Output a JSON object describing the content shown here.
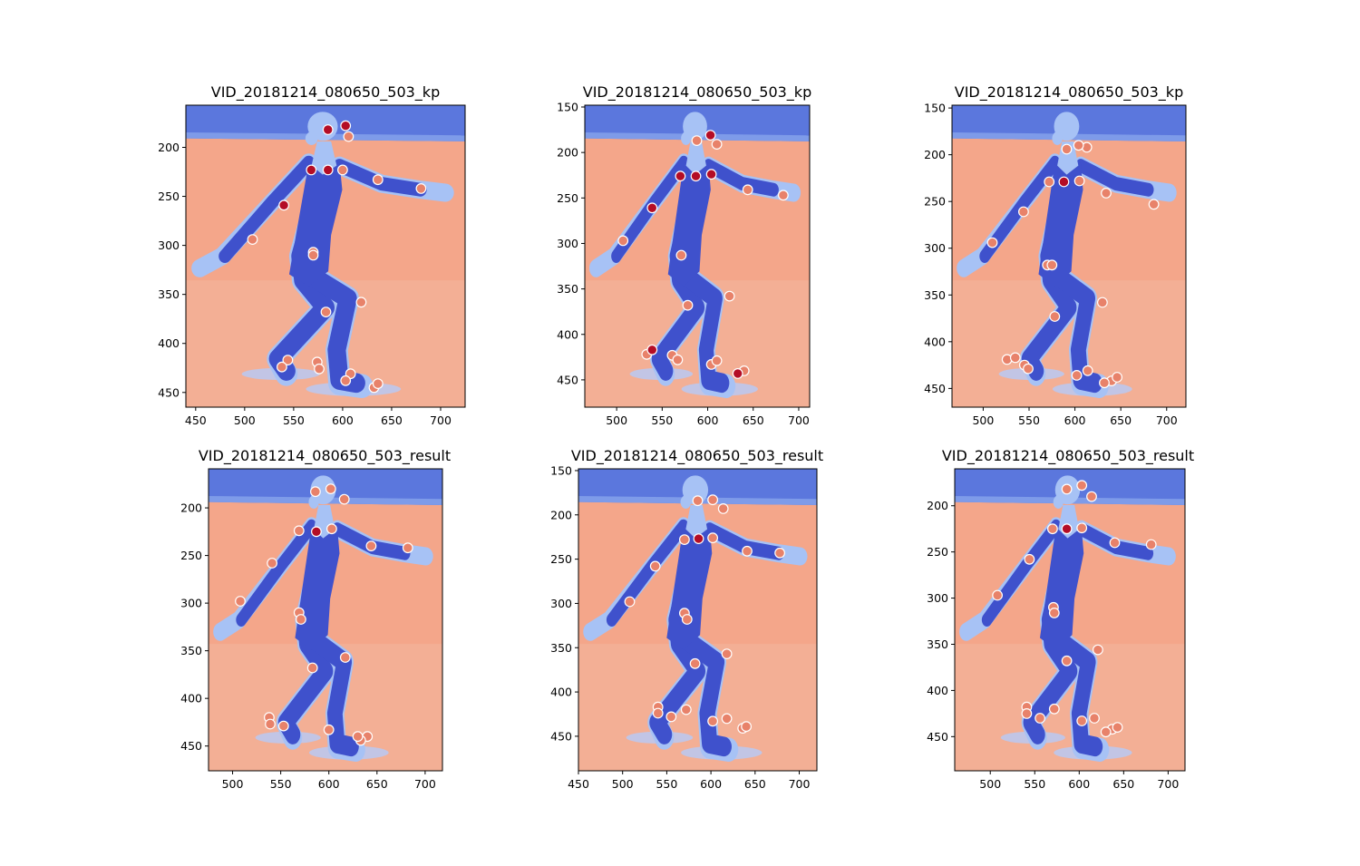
{
  "colors": {
    "background_ice": "#f4a68a",
    "background_ice_light": "#f2b59c",
    "boards": "#5b77dd",
    "boards_light": "#7e9be9",
    "skater_body": "#3f51cc",
    "skater_light": "#a7c2f5",
    "keypoint_hot": "#b40d26",
    "keypoint_warm": "#e8826a",
    "keypoint_edge": "#ffffff"
  },
  "chart_data": [
    {
      "type": "scatter",
      "title": "VID_20181214_080650_503_kp",
      "xlim": [
        440,
        725
      ],
      "ylim": [
        465,
        157
      ],
      "xticks": [
        450,
        500,
        550,
        600,
        650,
        700
      ],
      "yticks": [
        200,
        250,
        300,
        350,
        400,
        450
      ],
      "hot_points": [
        [
          585,
          182
        ],
        [
          603,
          178
        ],
        [
          568,
          223
        ],
        [
          585,
          223
        ],
        [
          540,
          259
        ]
      ],
      "warm_points": [
        [
          606,
          189
        ],
        [
          600,
          223
        ],
        [
          636,
          233
        ],
        [
          680,
          242
        ],
        [
          508,
          294
        ],
        [
          570,
          307
        ],
        [
          570,
          310
        ],
        [
          619,
          358
        ],
        [
          583,
          368
        ],
        [
          544,
          417
        ],
        [
          538,
          424
        ],
        [
          574,
          419
        ],
        [
          576,
          426
        ],
        [
          608,
          431
        ],
        [
          603,
          438
        ],
        [
          632,
          445
        ],
        [
          636,
          441
        ]
      ]
    },
    {
      "type": "scatter",
      "title": "VID_20181214_080650_503_kp",
      "xlim": [
        465,
        712
      ],
      "ylim": [
        480,
        148
      ],
      "xticks": [
        500,
        550,
        600,
        650,
        700
      ],
      "yticks": [
        150,
        200,
        250,
        300,
        350,
        400,
        450
      ],
      "hot_points": [
        [
          603,
          181
        ],
        [
          570,
          226
        ],
        [
          587,
          226
        ],
        [
          604,
          224
        ],
        [
          539,
          261
        ],
        [
          539,
          417
        ],
        [
          633,
          443
        ]
      ],
      "warm_points": [
        [
          588,
          187
        ],
        [
          610,
          191
        ],
        [
          644,
          241
        ],
        [
          683,
          247
        ],
        [
          507,
          297
        ],
        [
          571,
          313
        ],
        [
          624,
          358
        ],
        [
          578,
          368
        ],
        [
          533,
          422
        ],
        [
          561,
          423
        ],
        [
          567,
          428
        ],
        [
          604,
          433
        ],
        [
          610,
          429
        ],
        [
          640,
          440
        ]
      ]
    },
    {
      "type": "scatter",
      "title": "VID_20181214_080650_503_kp",
      "xlim": [
        466,
        721
      ],
      "ylim": [
        470,
        147
      ],
      "xticks": [
        500,
        550,
        600,
        650,
        700
      ],
      "yticks": [
        150,
        200,
        250,
        300,
        350,
        400,
        450
      ],
      "hot_points": [
        [
          588,
          229
        ]
      ],
      "warm_points": [
        [
          591,
          194
        ],
        [
          613,
          192
        ],
        [
          604,
          190
        ],
        [
          572,
          229
        ],
        [
          605,
          228
        ],
        [
          634,
          241
        ],
        [
          686,
          253
        ],
        [
          544,
          261
        ],
        [
          510,
          294
        ],
        [
          570,
          318
        ],
        [
          575,
          318
        ],
        [
          630,
          358
        ],
        [
          578,
          373
        ],
        [
          526,
          419
        ],
        [
          535,
          417
        ],
        [
          545,
          425
        ],
        [
          549,
          429
        ],
        [
          602,
          436
        ],
        [
          614,
          431
        ],
        [
          640,
          442
        ],
        [
          646,
          438
        ],
        [
          632,
          444
        ]
      ]
    },
    {
      "type": "scatter",
      "title": "VID_20181214_080650_503_result",
      "xlim": [
        475,
        718
      ],
      "ylim": [
        476,
        159
      ],
      "xticks": [
        500,
        550,
        600,
        650,
        700
      ],
      "yticks": [
        200,
        250,
        300,
        350,
        400,
        450
      ],
      "hot_points": [
        [
          587,
          225
        ]
      ],
      "warm_points": [
        [
          586,
          183
        ],
        [
          602,
          180
        ],
        [
          616,
          191
        ],
        [
          569,
          224
        ],
        [
          603,
          222
        ],
        [
          644,
          240
        ],
        [
          682,
          242
        ],
        [
          541,
          258
        ],
        [
          508,
          298
        ],
        [
          569,
          310
        ],
        [
          571,
          317
        ],
        [
          617,
          357
        ],
        [
          583,
          368
        ],
        [
          538,
          420
        ],
        [
          539,
          427
        ],
        [
          553,
          429
        ],
        [
          600,
          433
        ],
        [
          640,
          440
        ],
        [
          633,
          444
        ],
        [
          630,
          440
        ]
      ]
    },
    {
      "type": "scatter",
      "title": "VID_20181214_080650_503_result",
      "xlim": [
        450,
        720
      ],
      "ylim": [
        489,
        148
      ],
      "xticks": [
        450,
        500,
        550,
        600,
        650,
        700
      ],
      "yticks": [
        150,
        200,
        250,
        300,
        350,
        400,
        450
      ],
      "hot_points": [
        [
          586,
          227
        ]
      ],
      "warm_points": [
        [
          585,
          184
        ],
        [
          602,
          183
        ],
        [
          614,
          193
        ],
        [
          570,
          228
        ],
        [
          602,
          226
        ],
        [
          641,
          241
        ],
        [
          678,
          243
        ],
        [
          537,
          258
        ],
        [
          508,
          298
        ],
        [
          570,
          311
        ],
        [
          573,
          318
        ],
        [
          618,
          357
        ],
        [
          582,
          368
        ],
        [
          540,
          417
        ],
        [
          540,
          424
        ],
        [
          555,
          428
        ],
        [
          572,
          420
        ],
        [
          602,
          433
        ],
        [
          618,
          430
        ],
        [
          636,
          441
        ],
        [
          640,
          439
        ]
      ]
    },
    {
      "type": "scatter",
      "title": "VID_20181214_080650_503_result",
      "xlim": [
        460,
        719
      ],
      "ylim": [
        487,
        160
      ],
      "xticks": [
        500,
        550,
        600,
        650,
        700
      ],
      "yticks": [
        200,
        250,
        300,
        350,
        400,
        450
      ],
      "hot_points": [
        [
          586,
          225
        ]
      ],
      "warm_points": [
        [
          586,
          182
        ],
        [
          603,
          178
        ],
        [
          614,
          190
        ],
        [
          570,
          225
        ],
        [
          603,
          224
        ],
        [
          640,
          240
        ],
        [
          681,
          242
        ],
        [
          544,
          258
        ],
        [
          508,
          297
        ],
        [
          571,
          310
        ],
        [
          572,
          316
        ],
        [
          621,
          356
        ],
        [
          586,
          368
        ],
        [
          541,
          418
        ],
        [
          541,
          425
        ],
        [
          556,
          430
        ],
        [
          572,
          420
        ],
        [
          603,
          433
        ],
        [
          617,
          430
        ],
        [
          637,
          442
        ],
        [
          643,
          440
        ],
        [
          630,
          445
        ]
      ]
    }
  ]
}
